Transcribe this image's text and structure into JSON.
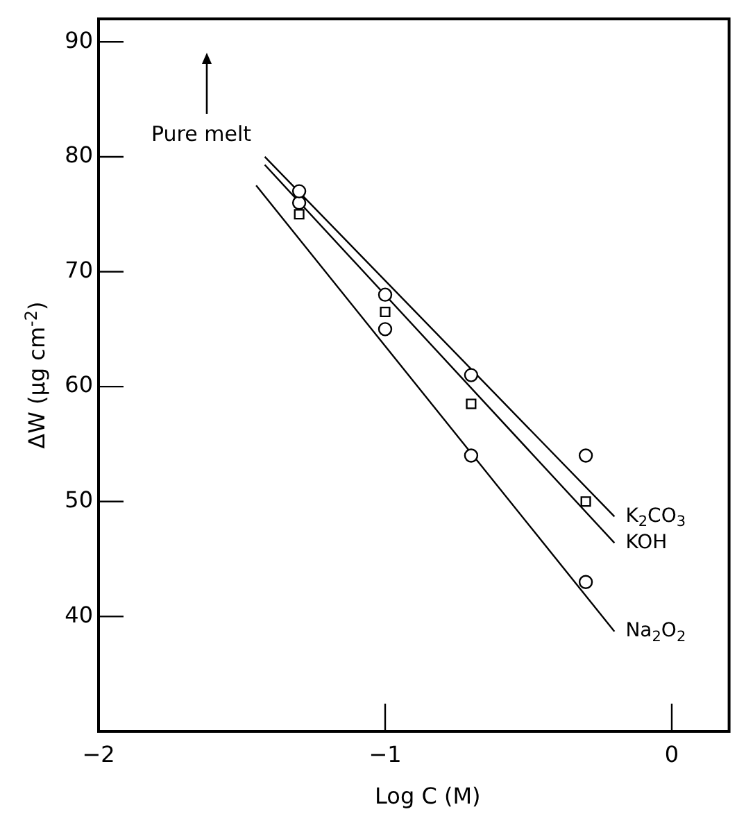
{
  "chart_data": {
    "type": "scatter",
    "xlabel": "Log C (M)",
    "ylabel": "ΔW (μg cm$^{-2}$)",
    "xlim": [
      -2,
      0.2
    ],
    "xticks": [
      -2,
      -1,
      0
    ],
    "ylim": [
      30,
      92
    ],
    "yticks": [
      40,
      50,
      60,
      70,
      80,
      90
    ],
    "grid": false,
    "legend": false,
    "annotations": [
      "Pure melt"
    ],
    "series": [
      {
        "color": "#000000",
        "marker": "circle",
        "x": [
          -1.3,
          -1,
          -0.7,
          -0.3
        ],
        "values": [
          77,
          68,
          61,
          54
        ]
      },
      {
        "color": "#000000",
        "marker": "square",
        "x": [
          -1.3,
          -1,
          -0.7,
          -0.3
        ],
        "values": [
          75,
          66.5,
          58.5,
          50
        ]
      },
      {
        "color": "#000000",
        "marker": "circle",
        "x": [
          -1.3,
          -1,
          -0.7,
          -0.3
        ],
        "values": [
          76,
          65,
          54,
          43
        ]
      },
      {
        "type": "line",
        "name": "K$_{2}$CO$_{3}$",
        "color": "#000000",
        "marker": "none",
        "x": [
          -1.42,
          -0.2
        ],
        "values": [
          80,
          48.7
        ]
      },
      {
        "type": "line",
        "name": "KOH",
        "color": "#000000",
        "marker": "none",
        "x": [
          -1.42,
          -0.2
        ],
        "values": [
          79.3,
          46.4
        ]
      },
      {
        "type": "line",
        "name": "Na$_{2}$O$_{2}$",
        "color": "#000000",
        "marker": "none",
        "x": [
          -1.45,
          -0.2
        ],
        "values": [
          77.5,
          38.7
        ]
      }
    ]
  }
}
